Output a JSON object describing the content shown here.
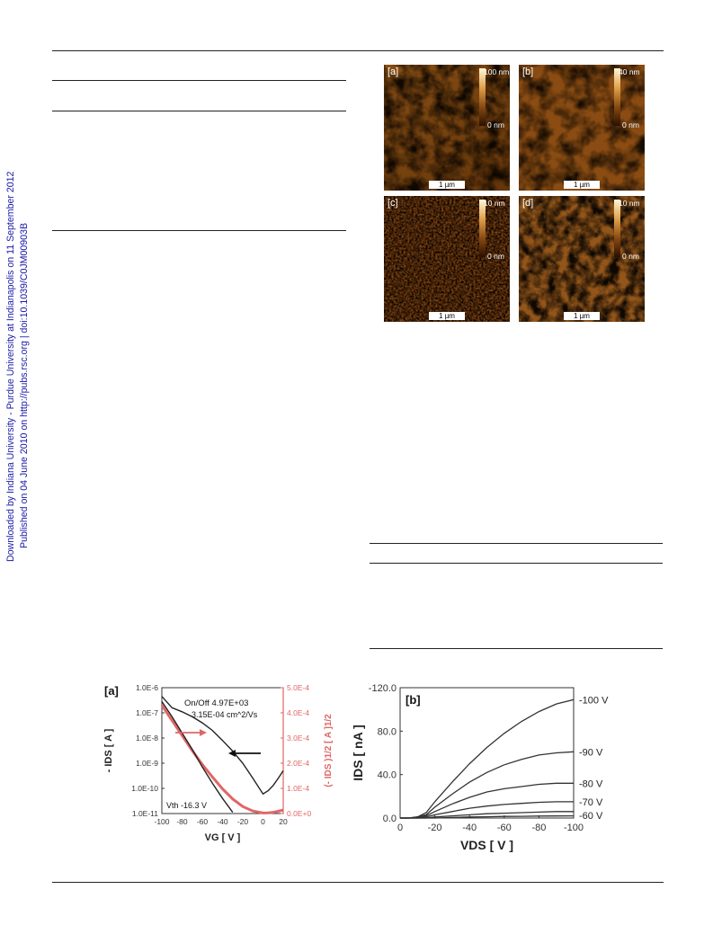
{
  "watermark": {
    "line1": "Downloaded by Indiana University - Purdue University at Indianapolis on 11 September 2012",
    "line2": "Published on 04 June 2010 on http://pubs.rsc.org | doi:10.1039/C0JM00903B"
  },
  "afm_panels": [
    {
      "label": "[a]",
      "top_scale": "100 nm",
      "bottom_scale": "0 nm",
      "length": "1 µm"
    },
    {
      "label": "[b]",
      "top_scale": "40 nm",
      "bottom_scale": "0 nm",
      "length": "1 µm"
    },
    {
      "label": "[c]",
      "top_scale": "10 nm",
      "bottom_scale": "0 nm",
      "length": "1 µm"
    },
    {
      "label": "[d]",
      "top_scale": "10 nm",
      "bottom_scale": "0 nm",
      "length": "1 µm"
    }
  ],
  "chart_data": [
    {
      "type": "line",
      "panel_label": "[a]",
      "x": [
        -100,
        -90,
        -80,
        -70,
        -60,
        -50,
        -40,
        -30,
        -20,
        -10,
        0,
        5,
        10,
        15,
        20
      ],
      "xlabel": "VG [ V ]",
      "xlim": [
        -100,
        20
      ],
      "xticks": [
        "-100",
        "-80",
        "-60",
        "-40",
        "-20",
        "0",
        "20"
      ],
      "ylabel_left": "- IDS [ A ]",
      "ylim_left": [
        1e-11,
        1e-06
      ],
      "yscale_left": "log",
      "yticks_left": [
        "1.0E-6",
        "1.0E-7",
        "1.0E-8",
        "1.0E-9",
        "1.0E-10",
        "1.0E-11"
      ],
      "ylabel_right": "(- IDS )1/2 [ A ]1/2",
      "ylim_right": [
        0,
        0.0005
      ],
      "yticks_right": [
        "5.0E-4",
        "4.0E-4",
        "3.0E-4",
        "2.0E-4",
        "1.0E-4",
        "0.0E+0"
      ],
      "annotations": [
        "On/Off 4.97E+03",
        "3.15E-04 cm^2/Vs",
        "Vth -16.3 V"
      ],
      "series": [
        {
          "axis": "left",
          "color": "#222222",
          "values": [
            4.5e-07,
            1.6e-07,
            1.1e-07,
            7e-08,
            4e-08,
            2e-08,
            8e-09,
            3e-09,
            1e-09,
            2.5e-10,
            6e-11,
            8e-11,
            1.3e-10,
            2.5e-10,
            5e-10
          ]
        },
        {
          "axis": "right",
          "color": "#e06666",
          "values": [
            0.00043,
            0.00037,
            0.00031,
            0.00025,
            0.000195,
            0.000145,
            9.8e-05,
            5.8e-05,
            2.8e-05,
            1e-05,
            2e-06,
            2.5e-06,
            5e-06,
            9e-06,
            1.4e-05
          ]
        },
        {
          "axis": "right",
          "color": "#222222",
          "values": [
            0.000445,
            0.000385,
            0.00032,
            0.000255,
            0.000185,
            0.00012,
            6e-05,
            5e-06,
            null,
            null,
            null,
            null,
            null,
            null,
            null
          ]
        }
      ]
    },
    {
      "type": "line",
      "panel_label": "[b]",
      "x": [
        0,
        -5,
        -10,
        -15,
        -20,
        -30,
        -40,
        -50,
        -60,
        -70,
        -80,
        -90,
        -100
      ],
      "xlabel": "VDS [ V ]",
      "xlim": [
        0,
        -100
      ],
      "xticks": [
        "0",
        "-20",
        "-40",
        "-60",
        "-80",
        "-100"
      ],
      "ylabel": "IDS [ nA ]",
      "ylim": [
        0,
        -120
      ],
      "yticks": [
        "-120.0",
        "80.0",
        "40.0",
        "0.0"
      ],
      "series": [
        {
          "name": "-100 V",
          "values": [
            0,
            0,
            -1,
            -5,
            -15,
            -33,
            -50,
            -65,
            -78,
            -89,
            -98,
            -105,
            -109
          ]
        },
        {
          "name": "-90 V",
          "values": [
            0,
            0,
            -1,
            -3,
            -10,
            -22,
            -33,
            -42,
            -49,
            -54,
            -58,
            -60,
            -61
          ]
        },
        {
          "name": "-80 V",
          "values": [
            0,
            0,
            -1,
            -2,
            -6,
            -13,
            -19,
            -24,
            -27,
            -29,
            -31,
            -32,
            -32
          ]
        },
        {
          "name": "-70 V",
          "values": [
            0,
            0,
            0,
            -1,
            -3,
            -6,
            -9,
            -11,
            -12.5,
            -13.5,
            -14.5,
            -15,
            -15
          ]
        },
        {
          "name": "-60 V",
          "values": [
            0,
            0,
            0,
            0,
            -1,
            -2,
            -3,
            -4,
            -4.5,
            -5,
            -5.5,
            -6,
            -6
          ]
        },
        {
          "name": "",
          "values": [
            0,
            0,
            0,
            0,
            0,
            -0.5,
            -1,
            -1.2,
            -1.5,
            -1.6,
            -1.8,
            -1.9,
            -2
          ]
        }
      ]
    }
  ]
}
